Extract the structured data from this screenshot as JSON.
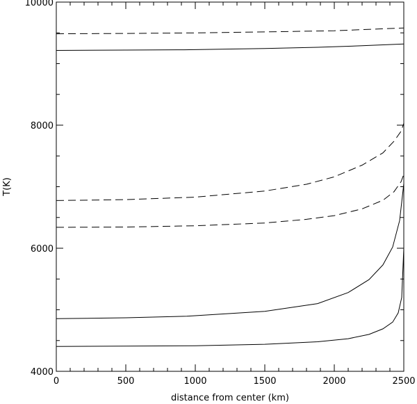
{
  "chart_data": {
    "type": "line",
    "title": "",
    "xlabel": "distance from center (km)",
    "ylabel": "T(K)",
    "xlim": [
      0,
      2500
    ],
    "ylim": [
      4000,
      10000
    ],
    "x_ticks": [
      0,
      500,
      1000,
      1500,
      2000,
      2500
    ],
    "y_ticks": [
      4000,
      6000,
      8000,
      10000
    ],
    "x_minor_step": 100,
    "y_minor_step": 500,
    "grid": false,
    "legend": "none",
    "series": [
      {
        "style": "dashed",
        "x": [
          0,
          500,
          1000,
          1500,
          2000,
          2500
        ],
        "y": [
          9485,
          9490,
          9500,
          9515,
          9535,
          9580
        ]
      },
      {
        "style": "solid",
        "x": [
          0,
          500,
          920,
          1500,
          1880,
          2200,
          2500
        ],
        "y": [
          9215,
          9220,
          9225,
          9245,
          9265,
          9290,
          9320
        ]
      },
      {
        "style": "dashed",
        "x": [
          0,
          500,
          1000,
          1500,
          1800,
          2000,
          2200,
          2350,
          2430,
          2480,
          2500
        ],
        "y": [
          6775,
          6790,
          6830,
          6930,
          7040,
          7160,
          7350,
          7550,
          7740,
          7900,
          8030
        ]
      },
      {
        "style": "dashed",
        "x": [
          0,
          500,
          1000,
          1500,
          1800,
          2000,
          2200,
          2350,
          2430,
          2480,
          2500
        ],
        "y": [
          6340,
          6345,
          6365,
          6410,
          6470,
          6530,
          6640,
          6780,
          6920,
          7080,
          7200
        ]
      },
      {
        "style": "solid",
        "x": [
          0,
          500,
          940,
          1500,
          1880,
          2100,
          2250,
          2350,
          2420,
          2470,
          2500
        ],
        "y": [
          4855,
          4870,
          4895,
          4975,
          5100,
          5280,
          5490,
          5730,
          6020,
          6450,
          7050
        ]
      },
      {
        "style": "solid",
        "x": [
          0,
          500,
          1000,
          1500,
          1880,
          2100,
          2250,
          2350,
          2420,
          2460,
          2485,
          2500
        ],
        "y": [
          4405,
          4410,
          4415,
          4440,
          4480,
          4530,
          4600,
          4690,
          4800,
          4950,
          5200,
          6000
        ]
      }
    ]
  }
}
